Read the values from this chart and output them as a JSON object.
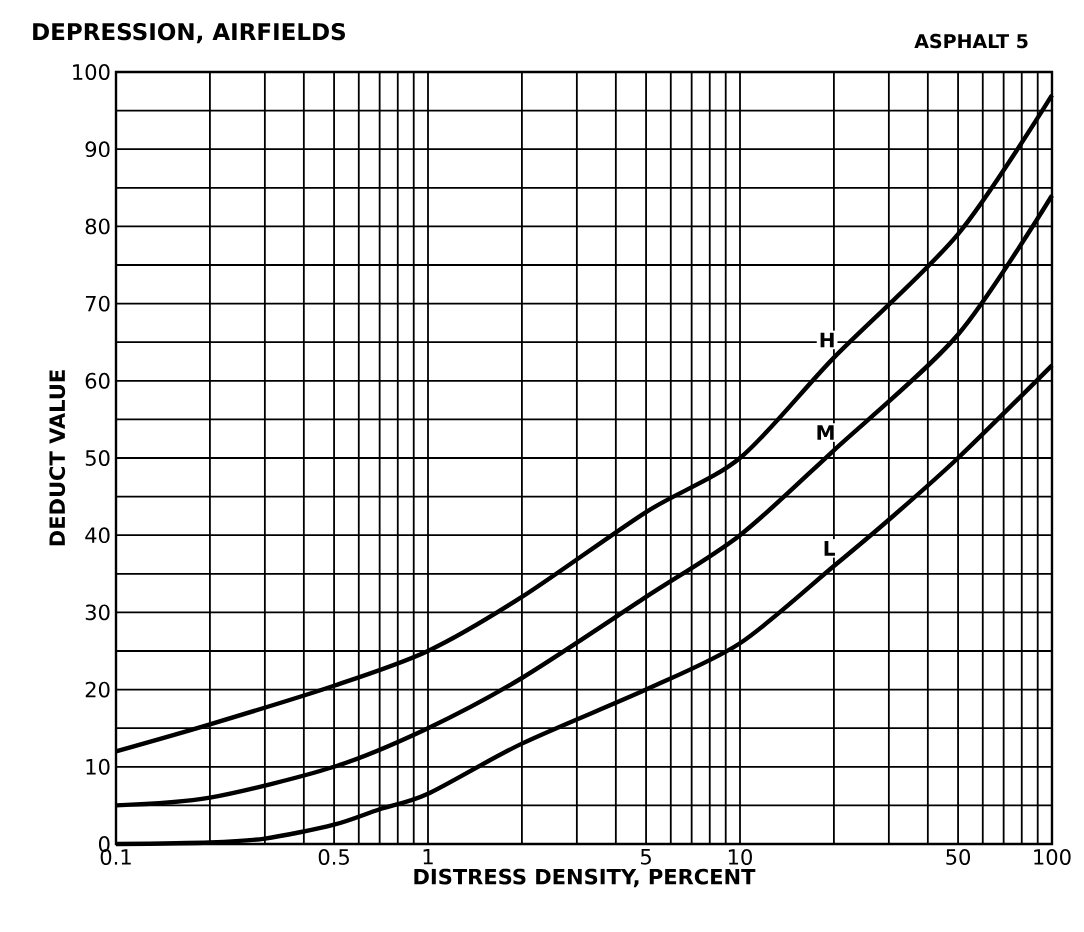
{
  "chart_data": {
    "type": "line",
    "title": "DEPRESSION, AIRFIELDS",
    "subtitle": "ASPHALT 5",
    "xlabel": "DISTRESS DENSITY, PERCENT",
    "ylabel": "DEDUCT VALUE",
    "log": "x",
    "grid": true,
    "line_style": "solid",
    "xlim": [
      0.1,
      100
    ],
    "ylim": [
      0,
      100
    ],
    "xticks": [
      0.1,
      {
        "value": 0.2,
        "label": null
      },
      {
        "value": 0.3,
        "label": null
      },
      {
        "value": 0.4,
        "label": null
      },
      0.5,
      {
        "value": 0.6,
        "label": null
      },
      {
        "value": 0.7,
        "label": null
      },
      {
        "value": 0.8,
        "label": null
      },
      {
        "value": 0.9,
        "label": null
      },
      1,
      {
        "value": 2,
        "label": null
      },
      {
        "value": 3,
        "label": null
      },
      {
        "value": 4,
        "label": null
      },
      5,
      {
        "value": 6,
        "label": null
      },
      {
        "value": 7,
        "label": null
      },
      {
        "value": 8,
        "label": null
      },
      {
        "value": 9,
        "label": null
      },
      10,
      {
        "value": 20,
        "label": null
      },
      {
        "value": 30,
        "label": null
      },
      {
        "value": 40,
        "label": null
      },
      50,
      {
        "value": 60,
        "label": null
      },
      {
        "value": 70,
        "label": null
      },
      {
        "value": 80,
        "label": null
      },
      {
        "value": 90,
        "label": null
      },
      100
    ],
    "yticks": [
      0,
      {
        "value": 5,
        "label": null
      },
      10,
      {
        "value": 15,
        "label": null
      },
      20,
      {
        "value": 25,
        "label": null
      },
      30,
      {
        "value": 35,
        "label": null
      },
      40,
      {
        "value": 45,
        "label": null
      },
      50,
      {
        "value": 55,
        "label": null
      },
      60,
      {
        "value": 65,
        "label": null
      },
      70,
      {
        "value": 75,
        "label": null
      },
      80,
      {
        "value": 85,
        "label": null
      },
      90,
      {
        "value": 95,
        "label": null
      },
      100
    ],
    "series": [
      {
        "name": "H",
        "color": "#000000",
        "x": [
          0.1,
          0.2,
          0.5,
          1,
          2,
          5,
          10,
          20,
          50,
          100
        ],
        "values": [
          12,
          15.5,
          20.5,
          25,
          32,
          43,
          50,
          63,
          79,
          97
        ]
      },
      {
        "name": "M",
        "color": "#000000",
        "x": [
          0.1,
          0.2,
          0.5,
          1,
          2,
          5,
          10,
          20,
          50,
          100
        ],
        "values": [
          5,
          6,
          10,
          15,
          21.5,
          32,
          40,
          51,
          66,
          84
        ]
      },
      {
        "name": "L",
        "color": "#000000",
        "x": [
          0.1,
          0.2,
          0.3,
          0.5,
          0.7,
          1,
          2,
          5,
          10,
          20,
          30,
          50,
          100
        ],
        "values": [
          0,
          0.2,
          0.7,
          2.5,
          4.5,
          6.5,
          13,
          20,
          26,
          36,
          42,
          50,
          62
        ]
      }
    ]
  }
}
